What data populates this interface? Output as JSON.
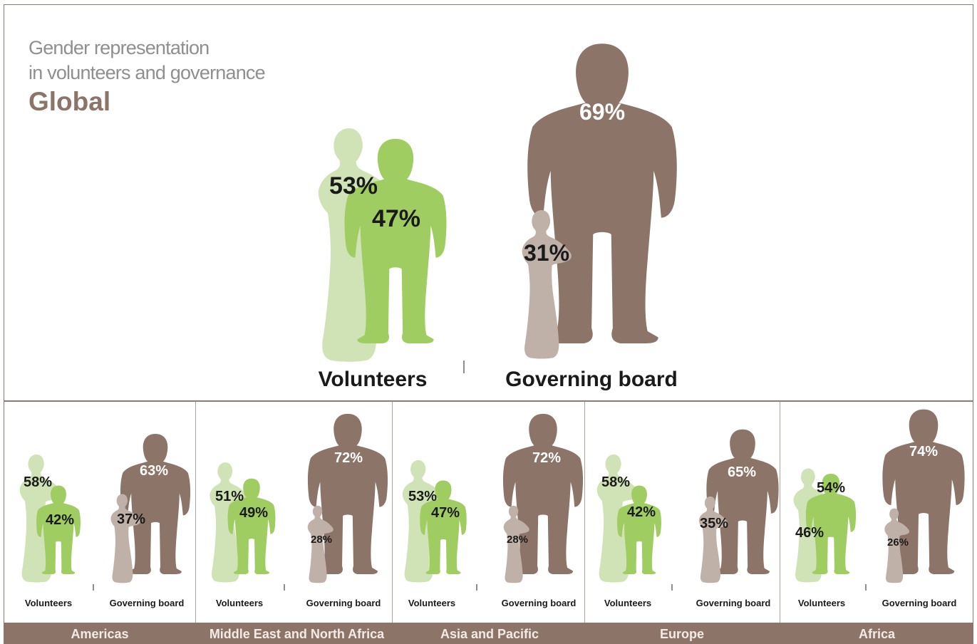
{
  "title": {
    "line1": "Gender representation",
    "line2": "in volunteers and governance",
    "region": "Global"
  },
  "colors": {
    "volunteer_female": "#cfe3b6",
    "volunteer_male": "#9fcd62",
    "board_female": "#c0b1a8",
    "board_male": "#8c7469",
    "bar": "#8c7469"
  },
  "chart_data": [
    {
      "type": "bar",
      "region": "Global",
      "categories": [
        "Volunteers",
        "Governing board"
      ],
      "series": [
        {
          "values": [
            53,
            31
          ]
        },
        {
          "values": [
            47,
            69
          ]
        }
      ],
      "labels": {
        "volunteers_female": "53%",
        "volunteers_male": "47%",
        "board_female": "31%",
        "board_male": "69%"
      }
    },
    {
      "type": "bar",
      "region": "Americas",
      "categories": [
        "Volunteers",
        "Governing board"
      ],
      "series": [
        {
          "values": [
            58,
            37
          ]
        },
        {
          "values": [
            42,
            63
          ]
        }
      ],
      "labels": {
        "volunteers_female": "58%",
        "volunteers_male": "42%",
        "board_female": "37%",
        "board_male": "63%"
      }
    },
    {
      "type": "bar",
      "region": "Middle East and North Africa",
      "categories": [
        "Volunteers",
        "Governing board"
      ],
      "series": [
        {
          "values": [
            51,
            28
          ]
        },
        {
          "values": [
            49,
            72
          ]
        }
      ],
      "labels": {
        "volunteers_female": "51%",
        "volunteers_male": "49%",
        "board_female": "28%",
        "board_male": "72%"
      }
    },
    {
      "type": "bar",
      "region": "Asia and Pacific",
      "categories": [
        "Volunteers",
        "Governing board"
      ],
      "series": [
        {
          "values": [
            53,
            28
          ]
        },
        {
          "values": [
            47,
            72
          ]
        }
      ],
      "labels": {
        "volunteers_female": "53%",
        "volunteers_male": "47%",
        "board_female": "28%",
        "board_male": "72%"
      }
    },
    {
      "type": "bar",
      "region": "Europe",
      "categories": [
        "Volunteers",
        "Governing board"
      ],
      "series": [
        {
          "values": [
            58,
            35
          ]
        },
        {
          "values": [
            42,
            65
          ]
        }
      ],
      "labels": {
        "volunteers_female": "58%",
        "volunteers_male": "42%",
        "board_female": "35%",
        "board_male": "65%"
      }
    },
    {
      "type": "bar",
      "region": "Africa",
      "categories": [
        "Volunteers",
        "Governing board"
      ],
      "series": [
        {
          "values": [
            46,
            26
          ]
        },
        {
          "values": [
            54,
            74
          ]
        }
      ],
      "labels": {
        "volunteers_female": "46%",
        "volunteers_male": "54%",
        "board_female": "26%",
        "board_male": "74%"
      }
    }
  ],
  "group_labels": {
    "volunteers": "Volunteers",
    "board": "Governing board"
  },
  "regions": [
    "Americas",
    "Middle East and North Africa",
    "Asia and Pacific",
    "Europe",
    "Africa"
  ]
}
